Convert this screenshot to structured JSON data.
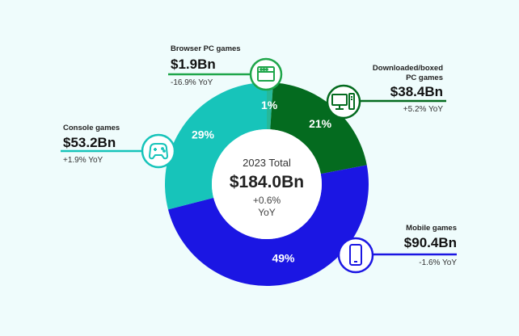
{
  "colors": {
    "background": "#effcfc",
    "browser": "#26b999",
    "downloaded": "#046b1f",
    "mobile": "#1b16e3",
    "console": "#17c4ba",
    "browser_line": "#1fa64a",
    "downloaded_line": "#046b1f",
    "mobile_line": "#1b16e3",
    "console_line": "#17c4ba"
  },
  "center": {
    "label": "2023 Total",
    "value": "$184.0Bn",
    "yoy_line1": "+0.6%",
    "yoy_line2": "YoY"
  },
  "categories": [
    {
      "name_lines": [
        "Browser PC games"
      ],
      "value": "$1.9Bn",
      "yoy": "-16.9% YoY",
      "icon": "browser-window-icon"
    },
    {
      "name_lines": [
        "Downloaded/boxed",
        "PC games"
      ],
      "value": "$38.4Bn",
      "yoy": "+5.2% YoY",
      "icon": "desktop-pc-icon"
    },
    {
      "name_lines": [
        "Mobile games"
      ],
      "value": "$90.4Bn",
      "yoy": "-1.6% YoY",
      "icon": "smartphone-icon"
    },
    {
      "name_lines": [
        "Console games"
      ],
      "value": "$53.2Bn",
      "yoy": "+1.9% YoY",
      "icon": "gamepad-icon"
    }
  ],
  "chart_data": {
    "type": "pie",
    "categories": [
      "Browser PC games",
      "Downloaded/boxed PC games",
      "Mobile games",
      "Console games"
    ],
    "values": [
      1,
      21,
      49,
      29
    ],
    "value_labels": [
      "1%",
      "21%",
      "49%",
      "29%"
    ],
    "revenue_labels": [
      "$1.9Bn",
      "$38.4Bn",
      "$90.4Bn",
      "$53.2Bn"
    ],
    "title": "",
    "donut": true
  }
}
